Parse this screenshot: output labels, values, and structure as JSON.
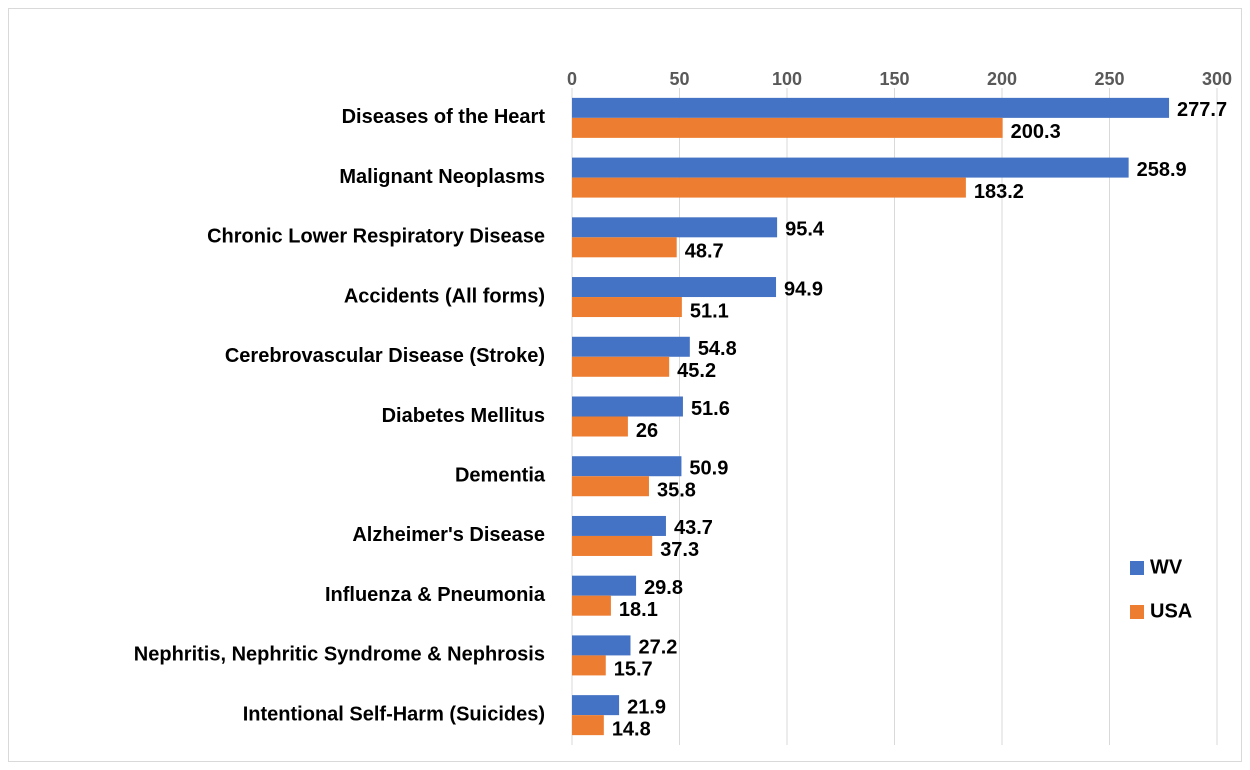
{
  "chart_data": {
    "type": "hbar",
    "categories": [
      "Diseases of the Heart",
      "Malignant Neoplasms",
      "Chronic Lower Respiratory Disease",
      "Accidents (All forms)",
      "Cerebrovascular Disease (Stroke)",
      "Diabetes Mellitus",
      "Dementia",
      "Alzheimer's Disease",
      "Influenza & Pneumonia",
      "Nephritis, Nephritic Syndrome & Nephrosis",
      "Intentional Self-Harm (Suicides)"
    ],
    "series": [
      {
        "name": "WV",
        "color": "#4472c4",
        "values": [
          277.7,
          258.9,
          95.4,
          94.9,
          54.8,
          51.6,
          50.9,
          43.7,
          29.8,
          27.2,
          21.9
        ]
      },
      {
        "name": "USA",
        "color": "#ed7d31",
        "values": [
          200.3,
          183.2,
          48.7,
          51.1,
          45.2,
          26,
          35.8,
          37.3,
          18.1,
          15.7,
          14.8
        ]
      }
    ],
    "xlim": [
      0,
      300
    ],
    "xticks": [
      0,
      50,
      100,
      150,
      200,
      250,
      300
    ],
    "grid": true,
    "legend": "right"
  }
}
